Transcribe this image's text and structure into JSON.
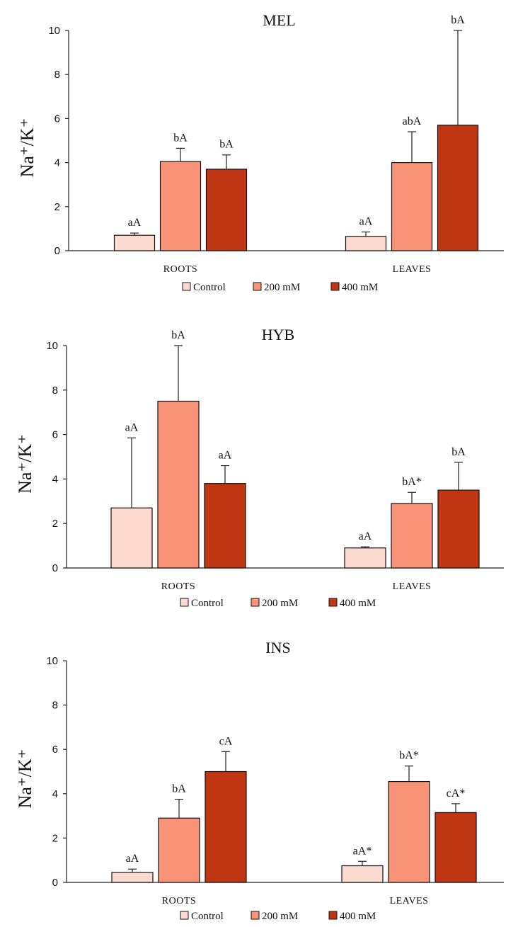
{
  "colors": {
    "Control": "#fcdad0",
    "200 mM": "#f99377",
    "400 mM": "#c03512",
    "axis": "#222222"
  },
  "chart_data": [
    {
      "type": "bar",
      "title": "MEL",
      "ylabel": "Na⁺/K⁺",
      "xlabel": "",
      "ylim": [
        0,
        10
      ],
      "yticks": [
        "0",
        "2",
        "4",
        "6",
        "8",
        "10"
      ],
      "categories": [
        "ROOTS",
        "LEAVES"
      ],
      "legend": [
        "Control",
        "200 mM",
        "400 mM"
      ],
      "legend_position": "bottom",
      "grid": false,
      "series": [
        {
          "name": "Control",
          "values": [
            0.7,
            0.65
          ],
          "errors": [
            0.1,
            0.2
          ],
          "labels": [
            "aA",
            "aA"
          ]
        },
        {
          "name": "200 mM",
          "values": [
            4.05,
            4.0
          ],
          "errors": [
            0.6,
            1.4
          ],
          "labels": [
            "bA",
            "abA"
          ]
        },
        {
          "name": "400 mM",
          "values": [
            3.7,
            5.7
          ],
          "errors": [
            0.65,
            4.3
          ],
          "labels": [
            "bA",
            "bA"
          ]
        }
      ]
    },
    {
      "type": "bar",
      "title": "HYB",
      "ylabel": "Na⁺/K⁺",
      "xlabel": "",
      "ylim": [
        0,
        10
      ],
      "yticks": [
        "0",
        "2",
        "4",
        "6",
        "8",
        "10"
      ],
      "categories": [
        "ROOTS",
        "LEAVES"
      ],
      "legend": [
        "Control",
        "200 mM",
        "400 mM"
      ],
      "legend_position": "bottom",
      "grid": false,
      "series": [
        {
          "name": "Control",
          "values": [
            2.7,
            0.9
          ],
          "errors": [
            3.15,
            0.05
          ],
          "labels": [
            "aA",
            "aA"
          ]
        },
        {
          "name": "200 mM",
          "values": [
            7.5,
            2.9
          ],
          "errors": [
            2.5,
            0.5
          ],
          "labels": [
            "bA",
            "bA*"
          ]
        },
        {
          "name": "400 mM",
          "values": [
            3.8,
            3.5
          ],
          "errors": [
            0.8,
            1.25
          ],
          "labels": [
            "aA",
            "bA"
          ]
        }
      ]
    },
    {
      "type": "bar",
      "title": "INS",
      "ylabel": "Na⁺/K⁺",
      "xlabel": "",
      "ylim": [
        0,
        10
      ],
      "yticks": [
        "0",
        "2",
        "4",
        "6",
        "8",
        "10"
      ],
      "categories": [
        "ROOTS",
        "LEAVES"
      ],
      "legend": [
        "Control",
        "200 mM",
        "400 mM"
      ],
      "legend_position": "bottom",
      "grid": false,
      "series": [
        {
          "name": "Control",
          "values": [
            0.45,
            0.75
          ],
          "errors": [
            0.15,
            0.2
          ],
          "labels": [
            "aA",
            "aA*"
          ]
        },
        {
          "name": "200 mM",
          "values": [
            2.9,
            4.55
          ],
          "errors": [
            0.85,
            0.7
          ],
          "labels": [
            "bA",
            "bA*"
          ]
        },
        {
          "name": "400 mM",
          "values": [
            5.0,
            3.15
          ],
          "errors": [
            0.9,
            0.4
          ],
          "labels": [
            "cA",
            "cA*"
          ]
        }
      ]
    }
  ]
}
